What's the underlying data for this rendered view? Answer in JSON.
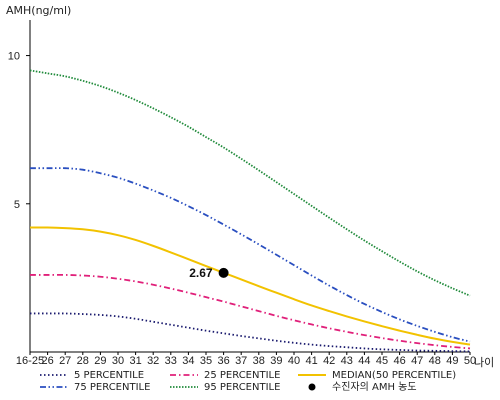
{
  "chart_data": {
    "type": "line",
    "ylabel": "AMH(ng/ml)",
    "xlabel": "나이",
    "categories": [
      "16-25",
      "26",
      "27",
      "28",
      "29",
      "30",
      "31",
      "32",
      "33",
      "34",
      "35",
      "36",
      "37",
      "38",
      "39",
      "40",
      "41",
      "42",
      "43",
      "44",
      "45",
      "46",
      "47",
      "48",
      "49",
      "50"
    ],
    "yticks": [
      5,
      10
    ],
    "ylim": [
      0,
      11.2
    ],
    "grid": false,
    "legend_position": "bottom",
    "series": [
      {
        "name": "5 PERCENTILE",
        "color": "#1a1a6e",
        "dash": "dotted",
        "values": [
          1.3,
          1.3,
          1.3,
          1.28,
          1.25,
          1.2,
          1.12,
          1.02,
          0.92,
          0.82,
          0.72,
          0.63,
          0.54,
          0.46,
          0.38,
          0.31,
          0.25,
          0.2,
          0.16,
          0.12,
          0.09,
          0.07,
          0.05,
          0.04,
          0.03,
          0.02
        ]
      },
      {
        "name": "25 PERCENTILE",
        "color": "#e0207a",
        "dash": "dashdot",
        "values": [
          2.6,
          2.6,
          2.6,
          2.58,
          2.54,
          2.47,
          2.38,
          2.27,
          2.14,
          2.0,
          1.85,
          1.7,
          1.54,
          1.38,
          1.22,
          1.07,
          0.93,
          0.8,
          0.68,
          0.57,
          0.47,
          0.38,
          0.3,
          0.23,
          0.17,
          0.12
        ]
      },
      {
        "name": "MEDIAN(50 PERCENTILE)",
        "color": "#f2c200",
        "dash": "solid",
        "values": [
          4.2,
          4.2,
          4.18,
          4.14,
          4.06,
          3.94,
          3.78,
          3.58,
          3.36,
          3.13,
          2.9,
          2.67,
          2.45,
          2.22,
          2.0,
          1.78,
          1.57,
          1.38,
          1.2,
          1.03,
          0.87,
          0.72,
          0.58,
          0.45,
          0.34,
          0.25
        ]
      },
      {
        "name": "75 PERCENTILE",
        "color": "#2a4fc0",
        "dash": "dashdotdot",
        "values": [
          6.2,
          6.2,
          6.2,
          6.15,
          6.03,
          5.88,
          5.68,
          5.45,
          5.2,
          4.92,
          4.62,
          4.3,
          3.97,
          3.63,
          3.28,
          2.93,
          2.58,
          2.24,
          1.92,
          1.62,
          1.35,
          1.1,
          0.88,
          0.68,
          0.5,
          0.35
        ]
      },
      {
        "name": "95 PERCENTILE",
        "color": "#1f8a3a",
        "dash": "densedot",
        "values": [
          9.5,
          9.4,
          9.3,
          9.15,
          8.97,
          8.75,
          8.5,
          8.22,
          7.92,
          7.6,
          7.25,
          6.9,
          6.52,
          6.13,
          5.73,
          5.33,
          4.93,
          4.53,
          4.14,
          3.76,
          3.4,
          3.05,
          2.72,
          2.42,
          2.15,
          1.9
        ]
      }
    ],
    "patient": {
      "name": "수진자의 AMH 농도",
      "x": "36",
      "y": 2.67,
      "label": "2.67",
      "color": "#000000"
    }
  }
}
